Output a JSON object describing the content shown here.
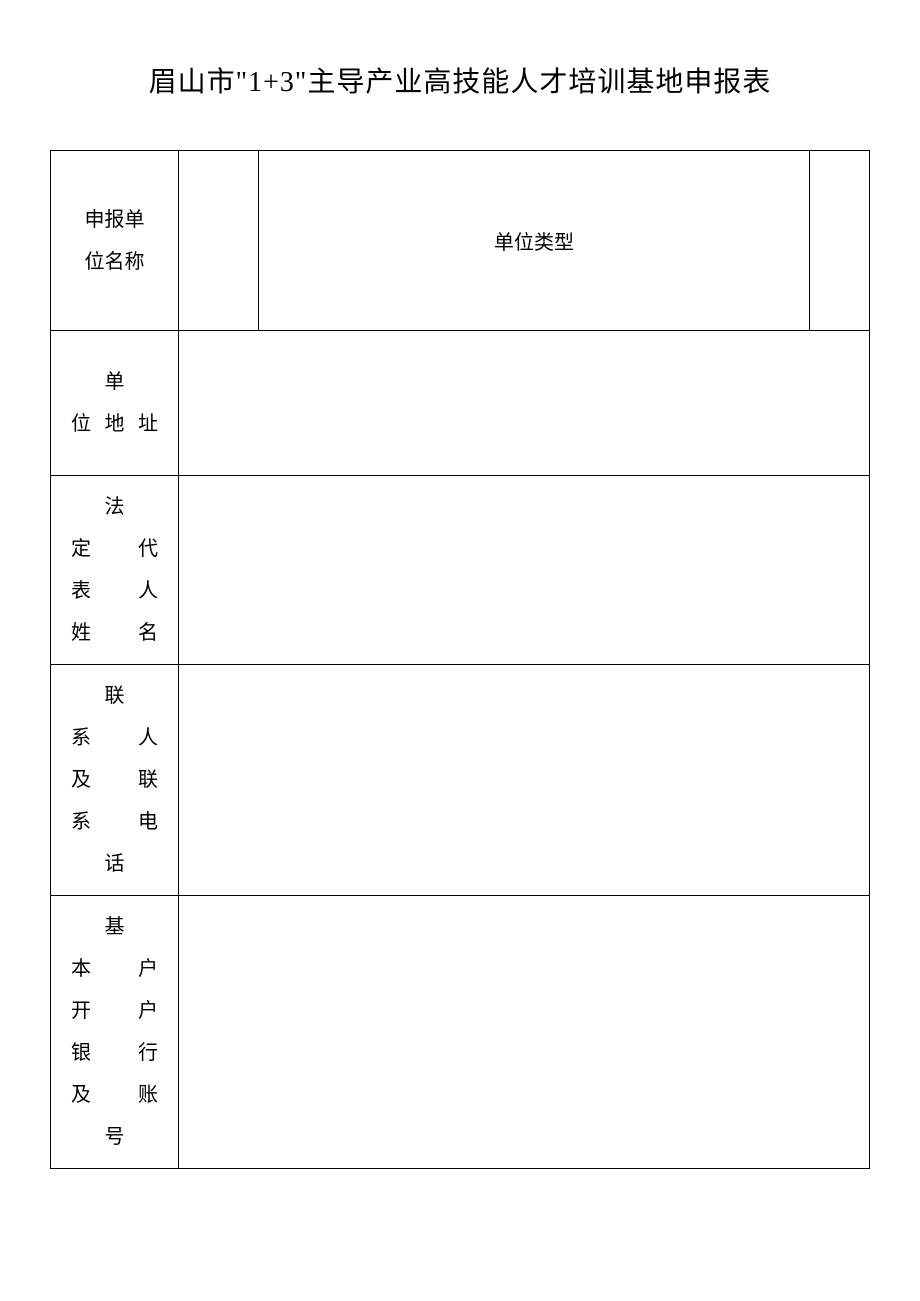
{
  "document": {
    "title": "眉山市\"1+3\"主导产业高技能人才培训基地申报表",
    "background_color": "#ffffff",
    "border_color": "#000000",
    "text_color": "#000000",
    "title_fontsize": 28,
    "cell_fontsize": 20
  },
  "rows": {
    "row1": {
      "label_line1": "申报单",
      "label_line2": "位名称",
      "header": "单位类型"
    },
    "row2": {
      "label_line1": "单",
      "label_line2": "位地址"
    },
    "row3": {
      "label_line1": "法",
      "label_line2": "定　代",
      "label_line3": "表　人",
      "label_line4": "姓名"
    },
    "row4": {
      "label_line1": "联",
      "label_line2": "系　人",
      "label_line3": "及　联",
      "label_line4": "系电",
      "label_line5": "话"
    },
    "row5": {
      "label_line1": "基",
      "label_line2": "本　户",
      "label_line3": "开　户",
      "label_line4": "银　行",
      "label_line5": "及账",
      "label_line6": "号"
    }
  }
}
